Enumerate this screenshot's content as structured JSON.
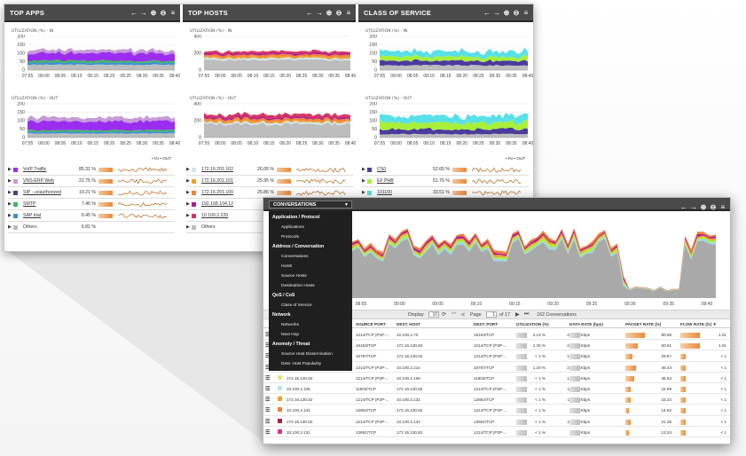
{
  "colors": {
    "voip": "#9b2df0",
    "erp": "#c59bd6",
    "sip": "#5b3a8c",
    "smtp": "#3db85c",
    "sap": "#3d8fd6",
    "others": "#bdbdbd",
    "h1": "#cfe9ef",
    "h2": "#f0a030",
    "h3": "#f27f3c",
    "h4": "#b01e8c",
    "h5": "#d8345f",
    "cs0": "#4b3b9c",
    "efphb": "#a8ef3a",
    "c101": "#58e0e8"
  },
  "top_apps": {
    "title": "TOP APPS",
    "in_label": "UTILIZATION (%) - IN",
    "out_label": "UTILIZATION (%) - OUT",
    "y_ticks": [
      "200",
      "150",
      "100",
      "50",
      "0"
    ],
    "x_ticks": [
      "07:55",
      "08:00",
      "08:05",
      "08:10",
      "08:15",
      "08:20",
      "08:25",
      "08:30",
      "08:35",
      "08:40"
    ],
    "legend_in": "IN",
    "legend_out": "OUT",
    "rows": [
      {
        "name": "VoIP Traffic",
        "pct": "85.31 %"
      },
      {
        "name": "VNS-ERP Web",
        "pct": "22.75 %"
      },
      {
        "name": "SIP - unauthorized",
        "pct": "10.21 %"
      },
      {
        "name": "SMTP",
        "pct": "7.46 %"
      },
      {
        "name": "SAP trial",
        "pct": "6.45 %"
      },
      {
        "name": "Others",
        "pct": "6.81 %"
      }
    ]
  },
  "top_hosts": {
    "title": "TOP HOSTS",
    "in_label": "UTILIZATION (%) - IN",
    "out_label": "UTILIZATION (%) - OUT",
    "y_ticks": [
      "400",
      "200",
      "0"
    ],
    "x_ticks": [
      "07:55",
      "08:00",
      "08:05",
      "08:10",
      "08:15",
      "08:20",
      "08:25",
      "08:30",
      "08:35",
      "08:40"
    ],
    "rows": [
      {
        "name": "172.16.201.102",
        "pct": "26.05 %"
      },
      {
        "name": "172.16.201.101",
        "pct": "25.95 %"
      },
      {
        "name": "172.16.201.100",
        "pct": "25.86 %"
      },
      {
        "name": "192.168.104.12",
        "pct": ""
      },
      {
        "name": "10.100.2.220",
        "pct": ""
      },
      {
        "name": "Others",
        "pct": "160"
      }
    ]
  },
  "class_of_service": {
    "title": "CLASS OF SERVICE",
    "in_label": "UTILIZATION (%) - IN",
    "out_label": "UTILIZATION (%) - OUT",
    "y_ticks": [
      "200",
      "150",
      "100",
      "50",
      "0"
    ],
    "x_ticks": [
      "07:55",
      "08:00",
      "08:05",
      "08:10",
      "08:15",
      "08:20",
      "08:25",
      "08:30",
      "08:35",
      "08:40"
    ],
    "legend_in": "IN",
    "legend_out": "OUT",
    "rows": [
      {
        "name": "CS0",
        "pct": "52.65 %"
      },
      {
        "name": "EF PHB",
        "pct": "51.76 %"
      },
      {
        "name": "101100",
        "pct": "33.51 %"
      }
    ]
  },
  "conversations": {
    "dropdown": "CONVERSATIONS",
    "menu": [
      {
        "group": "Application / Protocol",
        "items": [
          "Applications",
          "Protocols"
        ]
      },
      {
        "group": "Address / Conversation",
        "items": [
          "Conversations",
          "Hosts",
          "Source Hosts",
          "Destination Hosts"
        ]
      },
      {
        "group": "QoS / CoS",
        "items": [
          "Class of Service"
        ]
      },
      {
        "group": "Network",
        "items": [
          "Networks",
          "Next Hop"
        ]
      },
      {
        "group": "Anomoly / Threat",
        "items": [
          "Source Host Dissemination",
          "Dest. Host Popularity"
        ]
      }
    ],
    "x_ticks": [
      "08:55",
      "09:00",
      "09:05",
      "09:10",
      "09:15",
      "09:20",
      "09:25",
      "09:30",
      "09:35",
      "09:40"
    ],
    "pager": {
      "display_label": "Display",
      "display_value": "10",
      "page_label": "Page",
      "page_value": "1",
      "of_label": "of 17",
      "count": "162 Conversations"
    },
    "columns": [
      "SOURCE PORT",
      "DEST. HOST",
      "DEST. PORT",
      "UTILIZATION (%)",
      "DATA RATE (bps)",
      "PACKET RATE (/s)",
      "FLOW RATE (/s)"
    ],
    "rows": [
      {
        "host": "",
        "sport": "1214/TCP (P2P-...",
        "dhost": "10.100.2.70",
        "dport": "15153/TCP",
        "util": "2.13 %",
        "rate": "425.81 Kbps",
        "pkt": "80.56",
        "flow": "1.01",
        "color": "#ffffff"
      },
      {
        "host": "",
        "sport": "15153/TCP",
        "dhost": "172.16.130.82",
        "dport": "1214/TCP (P2P-...",
        "util": "1.30 %",
        "rate": "265.35 Kbps",
        "pkt": "50.61",
        "flow": "1.01",
        "color": "#ffffff"
      },
      {
        "host": "",
        "sport": "16787/TCP",
        "dhost": "172.16.130.82",
        "dport": "1214/TCP (P2P-...",
        "util": "< 1 %",
        "rate": "151.18 Kbps",
        "pkt": "29.87",
        "flow": "< 1",
        "color": "#ffffff"
      },
      {
        "host": "",
        "sport": "1214/TCP (P2P-...",
        "dhost": "10.100.2.214",
        "dport": "16787/TCP",
        "util": "1.20 %",
        "rate": "240.23 Kbps",
        "pkt": "45.43",
        "flow": "< 1",
        "color": "#ffffff"
      },
      {
        "host": "172.16.130.82",
        "sport": "1214/TCP (P2P-...",
        "dhost": "10.100.2.106",
        "dport": "11903/TCP",
        "util": "< 1 %",
        "rate": "190.28 Kbps",
        "pkt": "36.64",
        "flow": "< 1",
        "color": "#f3e27a"
      },
      {
        "host": "10.100.2.106",
        "sport": "11903/TCP",
        "dhost": "172.16.130.82",
        "dport": "1214/TCP (P2P-...",
        "util": "< 1 %",
        "rate": "119.77 Kbps",
        "pkt": "22.99",
        "flow": "< 1",
        "color": "#b6e3ef"
      },
      {
        "host": "172.16.130.82",
        "sport": "1214/TCP (P2P-...",
        "dhost": "10.100.2.131",
        "dport": "13854/TCP",
        "util": "< 1 %",
        "rate": "116.45 Kbps",
        "pkt": "22.22",
        "flow": "< 1",
        "color": "#f0a030"
      },
      {
        "host": "10.100.2.131",
        "sport": "13854/TCP",
        "dhost": "172.16.130.82",
        "dport": "1214/TCP (P2P-...",
        "util": "< 1 %",
        "rate": "75.36 Kbps",
        "pkt": "14.62",
        "flow": "< 1",
        "color": "#f27f3c"
      },
      {
        "host": "172.16.130.82",
        "sport": "1214/TCP (P2P-...",
        "dhost": "10.100.2.131",
        "dport": "13691/TCP",
        "util": "< 1 %",
        "rate": "113.48 Kbps",
        "pkt": "21.25",
        "flow": "< 1",
        "color": "#b01e3c"
      },
      {
        "host": "10.100.2.131",
        "sport": "13691/TCP",
        "dhost": "172.16.130.82",
        "dport": "1214/TCP (P2P-...",
        "util": "< 1 %",
        "rate": "70.75 Kbps",
        "pkt": "13.24",
        "flow": "< 1",
        "color": "#d8349f"
      }
    ]
  }
}
